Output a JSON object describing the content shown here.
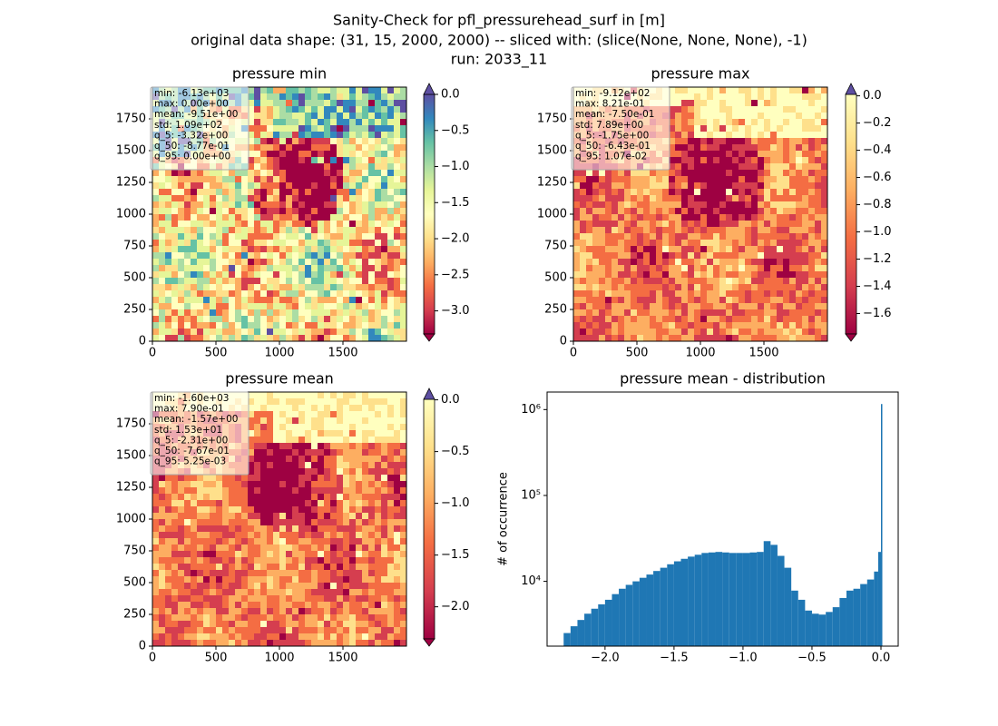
{
  "suptitle": [
    "Sanity-Check for pfl_pressurehead_surf in [m]",
    "original data shape: (31, 15, 2000, 2000) -- sliced with: (slice(None, None, None), -1)",
    "run: 2033_11"
  ],
  "chart_data": [
    {
      "type": "heatmap",
      "title": "pressure min",
      "xlim": [
        0,
        2000
      ],
      "ylim": [
        0,
        2000
      ],
      "xticks": [
        0,
        500,
        1000,
        1500
      ],
      "yticks": [
        0,
        250,
        500,
        750,
        1000,
        1250,
        1500,
        1750
      ],
      "colormap": [
        "#9e0142",
        "#d53e4f",
        "#f46d43",
        "#fdae61",
        "#fee08b",
        "#ffffbf",
        "#e6f598",
        "#abdda4",
        "#66c2a5",
        "#3288bd",
        "#5e4fa2"
      ],
      "extend_colors": [
        "#9e0142",
        "#5e4fa2"
      ],
      "clim": [
        -3.32,
        0.0
      ],
      "cticks": [
        {
          "value": 0.0,
          "label": "0.0"
        },
        {
          "value": -0.5,
          "label": "−0.5"
        },
        {
          "value": -1.0,
          "label": "−1.0"
        },
        {
          "value": -1.5,
          "label": "−1.5"
        },
        {
          "value": -2.0,
          "label": "−2.0"
        },
        {
          "value": -2.5,
          "label": "−2.5"
        },
        {
          "value": -3.0,
          "label": "−3.0"
        }
      ],
      "stats": [
        "min: -6.13e+03",
        "max: 0.00e+00",
        "mean: -9.51e+00",
        "std: 1.09e+02",
        "q_5: -3.32e+00",
        "q_50: -8.77e-01",
        "q_95: 0.00e+00"
      ]
    },
    {
      "type": "heatmap",
      "title": "pressure max",
      "xlim": [
        0,
        2000
      ],
      "ylim": [
        0,
        2000
      ],
      "xticks": [
        0,
        500,
        1000,
        1500
      ],
      "yticks": [
        0,
        250,
        500,
        750,
        1000,
        1250,
        1500,
        1750
      ],
      "colormap": [
        "#9e0142",
        "#d53e4f",
        "#f46d43",
        "#fdae61",
        "#fee08b",
        "#ffffbf"
      ],
      "extend_colors": [
        "#9e0142",
        "#5e4fa2"
      ],
      "clim": [
        -1.75,
        0.0107
      ],
      "cticks": [
        {
          "value": 0.0,
          "label": "0.0"
        },
        {
          "value": -0.2,
          "label": "−0.2"
        },
        {
          "value": -0.4,
          "label": "−0.4"
        },
        {
          "value": -0.6,
          "label": "−0.6"
        },
        {
          "value": -0.8,
          "label": "−0.8"
        },
        {
          "value": -1.0,
          "label": "−1.0"
        },
        {
          "value": -1.2,
          "label": "−1.2"
        },
        {
          "value": -1.4,
          "label": "−1.4"
        },
        {
          "value": -1.6,
          "label": "−1.6"
        }
      ],
      "stats": [
        "min: -9.12e+02",
        "max: 8.21e-01",
        "mean: -7.50e-01",
        "std: 7.89e+00",
        "q_5: -1.75e+00",
        "q_50: -6.43e-01",
        "q_95: 1.07e-02"
      ]
    },
    {
      "type": "heatmap",
      "title": "pressure mean",
      "xlim": [
        0,
        2000
      ],
      "ylim": [
        0,
        2000
      ],
      "xticks": [
        0,
        500,
        1000,
        1500
      ],
      "yticks": [
        0,
        250,
        500,
        750,
        1000,
        1250,
        1500,
        1750
      ],
      "colormap": [
        "#9e0142",
        "#d53e4f",
        "#f46d43",
        "#fdae61",
        "#fee08b",
        "#ffffbf"
      ],
      "extend_colors": [
        "#9e0142",
        "#5e4fa2"
      ],
      "clim": [
        -2.31,
        0.00525
      ],
      "cticks": [
        {
          "value": 0.0,
          "label": "0.0"
        },
        {
          "value": -0.5,
          "label": "−0.5"
        },
        {
          "value": -1.0,
          "label": "−1.0"
        },
        {
          "value": -1.5,
          "label": "−1.5"
        },
        {
          "value": -2.0,
          "label": "−2.0"
        }
      ],
      "stats": [
        "min: -1.60e+03",
        "max: 7.90e-01",
        "mean: -1.57e+00",
        "std: 1.53e+01",
        "q_5: -2.31e+00",
        "q_50: -7.67e-01",
        "q_95: 5.25e-03"
      ]
    },
    {
      "type": "histogram",
      "title": "pressure mean - distribution",
      "ylabel": "# of occurrence",
      "color": "#1f77b4",
      "log_y": true,
      "bins": [
        -2.3,
        -2.25,
        -2.2,
        -2.15,
        -2.1,
        -2.05,
        -2.0,
        -1.95,
        -1.9,
        -1.85,
        -1.8,
        -1.75,
        -1.7,
        -1.65,
        -1.6,
        -1.55,
        -1.5,
        -1.45,
        -1.4,
        -1.35,
        -1.3,
        -1.25,
        -1.2,
        -1.15,
        -1.1,
        -1.05,
        -1.0,
        -0.95,
        -0.9,
        -0.85,
        -0.8,
        -0.75,
        -0.7,
        -0.65,
        -0.6,
        -0.55,
        -0.5,
        -0.45,
        -0.4,
        -0.35,
        -0.3,
        -0.25,
        -0.2,
        -0.15,
        -0.1,
        -0.05,
        -0.02,
        0.0,
        0.01
      ],
      "values": [
        2500,
        3000,
        3550,
        4200,
        4800,
        5400,
        6100,
        7100,
        8200,
        9100,
        10000,
        11000,
        12000,
        13200,
        14400,
        15800,
        17100,
        18300,
        19400,
        20400,
        21400,
        21700,
        22000,
        21700,
        21400,
        21400,
        21400,
        21700,
        22000,
        29400,
        26600,
        19800,
        14400,
        7800,
        6100,
        4570,
        4200,
        4100,
        4400,
        5000,
        6400,
        7800,
        8200,
        9300,
        10500,
        13000,
        22000,
        1160000
      ],
      "xlim": [
        -2.42,
        0.125
      ],
      "ylim": [
        1760,
        1600000
      ],
      "xticks": [
        {
          "value": -2.0,
          "label": "−2.0"
        },
        {
          "value": -1.5,
          "label": "−1.5"
        },
        {
          "value": -1.0,
          "label": "−1.0"
        },
        {
          "value": -0.5,
          "label": "−0.5"
        },
        {
          "value": 0.0,
          "label": "0.0"
        }
      ],
      "yticks": [
        {
          "value": 10000,
          "label": "10⁴"
        },
        {
          "value": 100000,
          "label": "10⁵"
        },
        {
          "value": 1000000,
          "label": "10⁶"
        }
      ]
    }
  ]
}
